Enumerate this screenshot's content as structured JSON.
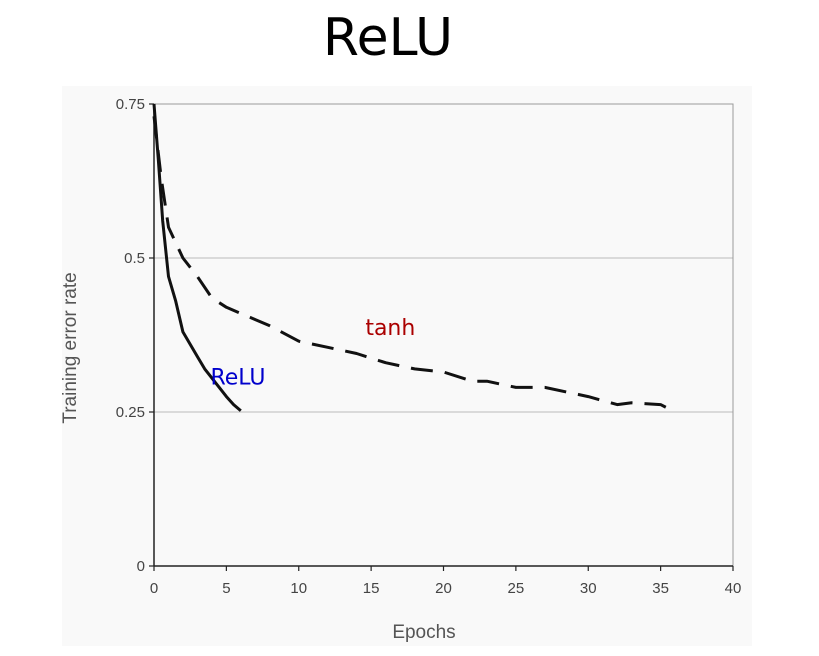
{
  "slide": {
    "title": "ReLU"
  },
  "chart_data": {
    "type": "line",
    "title": "",
    "xlabel": "Epochs",
    "ylabel": "Training error rate",
    "xlim": [
      0,
      40
    ],
    "ylim": [
      0,
      0.75
    ],
    "xticks": [
      0,
      5,
      10,
      15,
      20,
      25,
      30,
      35,
      40
    ],
    "yticks": [
      0,
      0.25,
      0.5,
      0.75
    ],
    "ytick_labels": [
      "0",
      "0.25",
      "0.5",
      "0.75"
    ],
    "grid": "horizontal",
    "series": [
      {
        "name": "ReLU",
        "label_color": "#0000cc",
        "line_style": "solid",
        "points": [
          [
            0,
            0.75
          ],
          [
            0.3,
            0.66
          ],
          [
            0.6,
            0.56
          ],
          [
            1,
            0.47
          ],
          [
            1.5,
            0.43
          ],
          [
            2,
            0.38
          ],
          [
            3,
            0.34
          ],
          [
            3.5,
            0.32
          ],
          [
            4,
            0.305
          ],
          [
            5,
            0.275
          ],
          [
            5.5,
            0.262
          ],
          [
            6,
            0.252
          ]
        ]
      },
      {
        "name": "tanh",
        "label_color": "#aa0000",
        "line_style": "dashed",
        "points": [
          [
            0,
            0.73
          ],
          [
            0.5,
            0.63
          ],
          [
            1,
            0.55
          ],
          [
            2,
            0.5
          ],
          [
            3,
            0.47
          ],
          [
            4,
            0.435
          ],
          [
            5,
            0.42
          ],
          [
            7,
            0.4
          ],
          [
            8,
            0.39
          ],
          [
            10,
            0.365
          ],
          [
            12,
            0.355
          ],
          [
            14,
            0.345
          ],
          [
            16,
            0.33
          ],
          [
            18,
            0.32
          ],
          [
            20,
            0.315
          ],
          [
            22,
            0.3
          ],
          [
            23,
            0.3
          ],
          [
            25,
            0.29
          ],
          [
            27,
            0.29
          ],
          [
            30,
            0.275
          ],
          [
            32,
            0.262
          ],
          [
            33,
            0.265
          ],
          [
            35,
            0.262
          ],
          [
            36,
            0.25
          ]
        ]
      }
    ]
  }
}
